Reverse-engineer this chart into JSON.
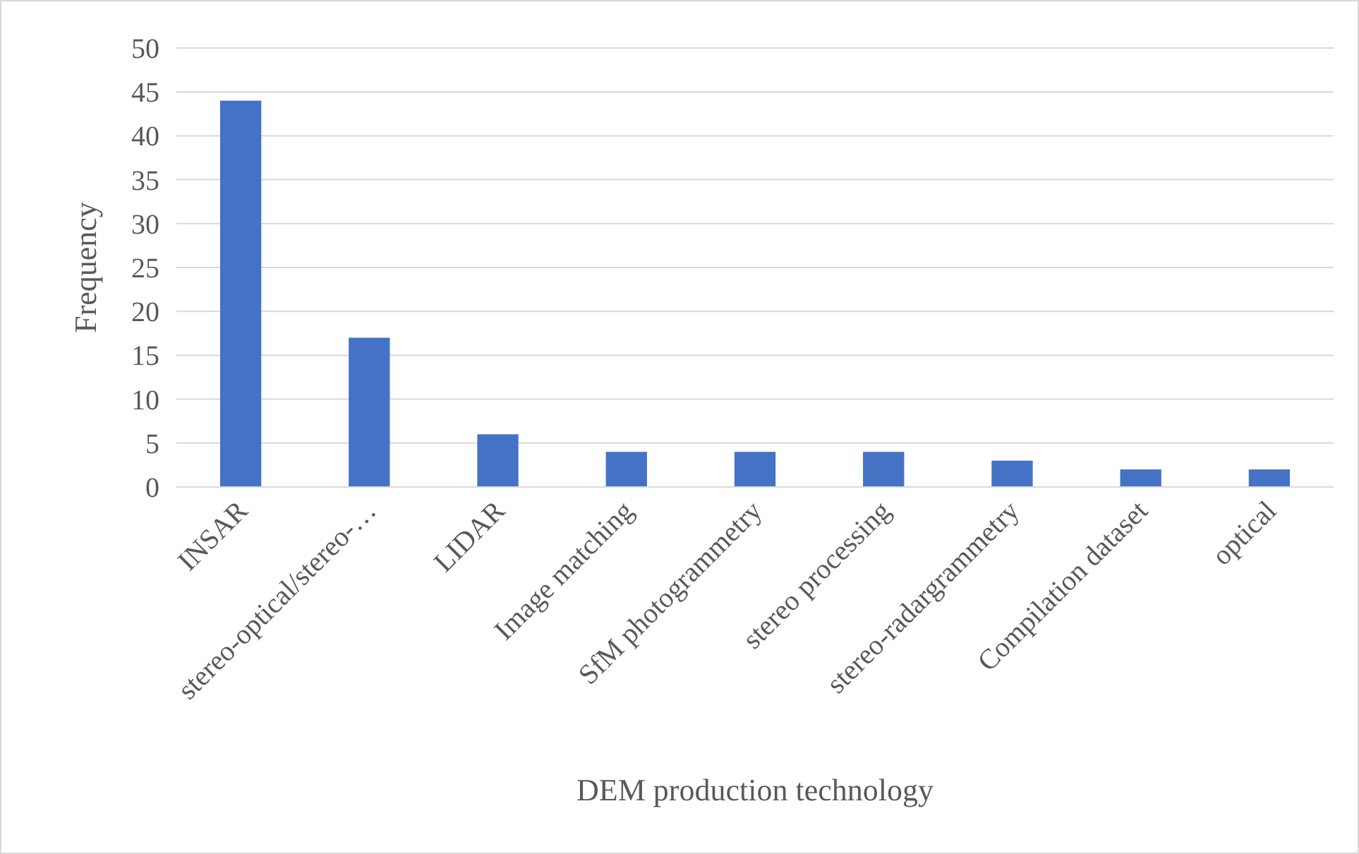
{
  "chart_data": {
    "type": "bar",
    "xlabel": "DEM production technology",
    "ylabel": "Frequency",
    "categories": [
      "INSAR",
      "stereo-optical/stereo-…",
      "LIDAR",
      "Image matching",
      "SfM photogrammetry",
      "stereo processing",
      "stereo-radargrammetry",
      "Compilation dataset",
      "optical"
    ],
    "values": [
      44,
      17,
      6,
      4,
      4,
      4,
      3,
      2,
      2
    ],
    "color": "#4472c4",
    "ylim": [
      0,
      50
    ],
    "yticks": [
      0,
      5,
      10,
      15,
      20,
      25,
      30,
      35,
      40,
      45,
      50
    ],
    "grid": "y"
  }
}
